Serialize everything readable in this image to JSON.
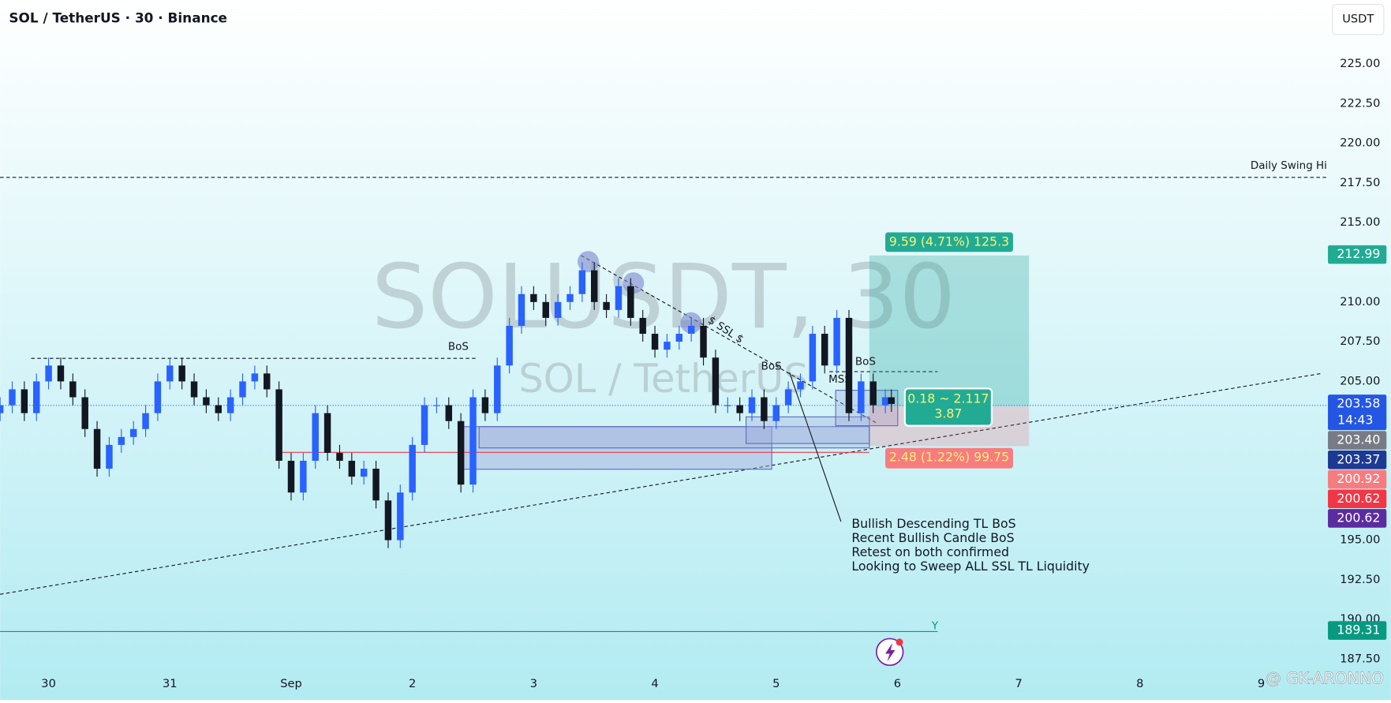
{
  "chart_data": {
    "type": "candlestick",
    "title": "SOL / TetherUS · 30 · Binance",
    "currency": "USDT",
    "watermark": "SOLUSDT, 30",
    "watermark_subtitle": "SOL / TetherUS",
    "up_color": "#2962ff",
    "down_color": "#131722",
    "grid": false,
    "xlim": [
      -0.4,
      10.55
    ],
    "ylim": [
      186.84,
      226.79
    ],
    "xticks": [
      {
        "value": 0,
        "label": "30"
      },
      {
        "value": 1,
        "label": "31"
      },
      {
        "value": 2,
        "label": "Sep"
      },
      {
        "value": 3,
        "label": "2"
      },
      {
        "value": 4,
        "label": "3"
      },
      {
        "value": 5,
        "label": "4"
      },
      {
        "value": 6,
        "label": "5"
      },
      {
        "value": 7,
        "label": "6"
      },
      {
        "value": 8,
        "label": "7"
      },
      {
        "value": 9,
        "label": "8"
      },
      {
        "value": 10,
        "label": "9"
      }
    ],
    "yticks": [
      {
        "value": 187.5,
        "label": "187.50"
      },
      {
        "value": 190,
        "label": "190.00"
      },
      {
        "value": 192.5,
        "label": "192.50"
      },
      {
        "value": 195,
        "label": "195.00"
      },
      {
        "value": 205,
        "label": "205.00"
      },
      {
        "value": 207.5,
        "label": "207.50"
      },
      {
        "value": 210,
        "label": "210.00"
      },
      {
        "value": 215,
        "label": "215.00"
      },
      {
        "value": 217.5,
        "label": "217.50"
      },
      {
        "value": 220,
        "label": "220.00"
      },
      {
        "value": 222.5,
        "label": "222.50"
      },
      {
        "value": 225,
        "label": "225.00"
      }
    ],
    "x": [
      -0.4,
      -0.3,
      -0.2,
      -0.1,
      0,
      0.1,
      0.2,
      0.3,
      0.4,
      0.5,
      0.6,
      0.7,
      0.8,
      0.9,
      1,
      1.1,
      1.2,
      1.3,
      1.4,
      1.5,
      1.6,
      1.7,
      1.8,
      1.9,
      2,
      2.1,
      2.2,
      2.3,
      2.4,
      2.5,
      2.6,
      2.7,
      2.8,
      2.9,
      3,
      3.1,
      3.2,
      3.3,
      3.4,
      3.5,
      3.6,
      3.7,
      3.8,
      3.9,
      4,
      4.1,
      4.2,
      4.3,
      4.4,
      4.5,
      4.6,
      4.7,
      4.8,
      4.9,
      5,
      5.1,
      5.2,
      5.3,
      5.4,
      5.5,
      5.6,
      5.7,
      5.8,
      5.9,
      6,
      6.1,
      6.2,
      6.3,
      6.4,
      6.5,
      6.6,
      6.7,
      6.8,
      6.9,
      6.95
    ],
    "open": [
      203,
      203.5,
      204.5,
      203,
      205,
      206,
      205,
      204,
      202,
      199.5,
      201,
      201.5,
      202,
      203,
      205,
      206,
      205,
      204,
      203.5,
      203,
      204,
      205,
      205.5,
      204.5,
      200,
      198,
      200,
      203,
      200.5,
      200,
      199,
      199.5,
      197.5,
      195,
      198,
      201,
      203.5,
      203.5,
      202.5,
      198.5,
      204,
      203,
      206,
      208.5,
      210.5,
      210,
      209,
      210,
      210.5,
      212,
      210,
      209.5,
      211,
      209,
      208,
      207,
      207.5,
      208,
      208.5,
      206.5,
      203.5,
      203.5,
      203,
      204,
      202.5,
      203.5,
      204.5,
      205,
      208,
      206,
      209,
      203,
      205,
      203.5,
      204
    ],
    "high": [
      204,
      205,
      205,
      205.5,
      206.5,
      206.5,
      205.5,
      204.5,
      202.5,
      201.5,
      202,
      202.5,
      203.5,
      205.5,
      206.5,
      206.5,
      205.5,
      204.5,
      204,
      204.5,
      205.5,
      206,
      206,
      205,
      200.5,
      200.5,
      203.5,
      203.5,
      201,
      200.5,
      200,
      200,
      198,
      198.5,
      201.5,
      204,
      204,
      204,
      203,
      204.5,
      204.5,
      206.5,
      209,
      211,
      211,
      210.5,
      210.5,
      211,
      212.5,
      212.5,
      210.5,
      211.5,
      211.5,
      209.5,
      208.5,
      208,
      208.5,
      209,
      209,
      207,
      204,
      204,
      204.5,
      204.5,
      204,
      205,
      205.5,
      208.5,
      208.5,
      209.5,
      209.5,
      205.5,
      205.5,
      204.5,
      204.5
    ],
    "low": [
      202.5,
      203,
      202.5,
      202.5,
      204.5,
      204.5,
      203.5,
      201.5,
      199,
      199,
      200.5,
      201,
      201.5,
      202.5,
      204.5,
      204.5,
      203.5,
      203,
      202.5,
      202.5,
      203.5,
      204.5,
      204,
      199.5,
      197.5,
      197.5,
      199.5,
      200,
      199.5,
      198.5,
      198.5,
      197,
      194.5,
      194.5,
      197.5,
      200.5,
      203,
      202,
      198,
      198,
      202.5,
      202.5,
      205.5,
      208,
      209.5,
      208.5,
      208.5,
      209.5,
      210,
      209.5,
      209,
      209,
      208.5,
      207.5,
      206.5,
      206.5,
      207,
      207.5,
      206,
      203,
      203,
      202.5,
      202.5,
      202,
      202,
      203,
      204,
      204.5,
      205.5,
      205.5,
      202.5,
      202.5,
      203,
      203,
      203.08
    ],
    "close": [
      203.5,
      204.5,
      203,
      205,
      206,
      205,
      204,
      202,
      199.5,
      201,
      201.5,
      202,
      203,
      205,
      206,
      205,
      204,
      203.5,
      203,
      204,
      205,
      205.5,
      204.5,
      200,
      198,
      200,
      203,
      200.5,
      200,
      199,
      199.5,
      197.5,
      195,
      198,
      201,
      203.5,
      203.5,
      202.5,
      198.5,
      204,
      203,
      206,
      208.5,
      210.5,
      210,
      209,
      210,
      210.5,
      212,
      210,
      209.5,
      211,
      209,
      208,
      207,
      207.5,
      208,
      208.5,
      206.5,
      203.5,
      203.5,
      203,
      204,
      202.5,
      203.5,
      204.5,
      205,
      208,
      206,
      209,
      203,
      205,
      203.5,
      204,
      203.58
    ],
    "price_labels": [
      {
        "value": 212.99,
        "color": "#22ab94"
      },
      {
        "value": 203.58,
        "color": "#2456e6",
        "countdown": "14:43"
      },
      {
        "value": 203.4,
        "label": "203.40",
        "color": "#787b86"
      },
      {
        "value": 203.37,
        "color": "#1c3a94"
      },
      {
        "value": 200.92,
        "color": "#f77c80"
      },
      {
        "value": 200.62,
        "color": "#f23645"
      },
      {
        "value": 200.62,
        "color": "#5b2ca0"
      },
      {
        "value": 189.31,
        "color": "#089981"
      }
    ],
    "annotations": {
      "daily_swing_hi": "Daily Swing Hi",
      "bos": [
        "BoS",
        "BoS",
        "BoS"
      ],
      "mss": "MSS",
      "ssl": "$ SSL $",
      "target_label": "9.59 (4.71%) 125.3",
      "stop_label": "2.48 (1.22%) 99.75",
      "position_ratio": "0.18 ~ 2.117",
      "position_rr": "3.87",
      "note": [
        "Bullish Descending TL BoS",
        "Recent Bullish Candle BoS",
        "Retest on both confirmed",
        "Looking to Sweep ALL SSL TL Liquidity"
      ],
      "y_marker": "Y",
      "author": "@ GK-ARONNO"
    }
  }
}
